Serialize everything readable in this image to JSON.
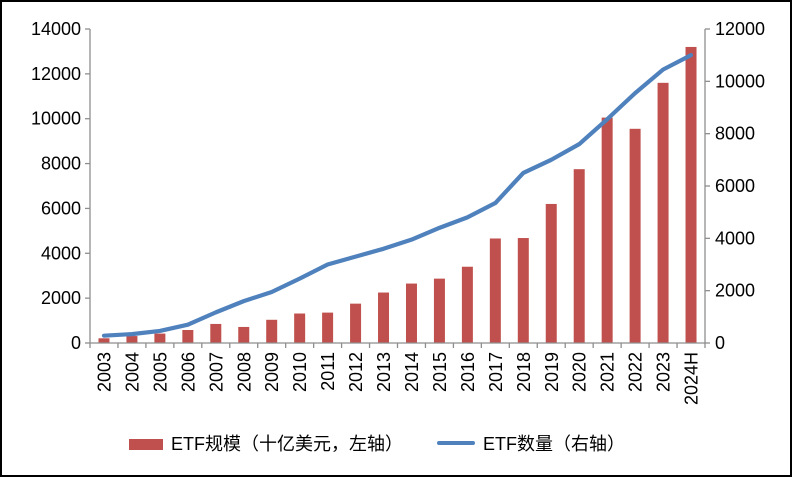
{
  "chart_data": {
    "type": "combo-bar-line",
    "title": "",
    "categories": [
      "2003",
      "2004",
      "2005",
      "2006",
      "2007",
      "2008",
      "2009",
      "2010",
      "2011",
      "2012",
      "2013",
      "2014",
      "2015",
      "2016",
      "2017",
      "2018",
      "2019",
      "2020",
      "2021",
      "2022",
      "2023",
      "2024H"
    ],
    "series": [
      {
        "name": "ETF规模（十亿美元，左轴）",
        "type": "bar",
        "axis": "left",
        "color": "#c0504d",
        "values": [
          210,
          310,
          420,
          580,
          850,
          715,
          1035,
          1315,
          1355,
          1755,
          2250,
          2650,
          2870,
          3400,
          4660,
          4680,
          6200,
          7750,
          10050,
          9550,
          11600,
          13200
        ]
      },
      {
        "name": "ETF数量（右轴）",
        "type": "line",
        "axis": "right",
        "color": "#4f81bd",
        "values": [
          280,
          340,
          460,
          700,
          1170,
          1600,
          1950,
          2460,
          3000,
          3300,
          3600,
          3950,
          4400,
          4800,
          5350,
          6500,
          7000,
          7600,
          8550,
          9550,
          10450,
          11000
        ]
      }
    ],
    "axes": {
      "left": {
        "min": 0,
        "max": 14000,
        "step": 2000,
        "tick_labels": [
          "0",
          "2000",
          "4000",
          "6000",
          "8000",
          "10000",
          "12000",
          "14000"
        ]
      },
      "right": {
        "min": 0,
        "max": 12000,
        "step": 2000,
        "tick_labels": [
          "0",
          "2000",
          "4000",
          "6000",
          "8000",
          "10000",
          "12000"
        ]
      },
      "x": {
        "tick_labels": [
          "2003",
          "2004",
          "2005",
          "2006",
          "2007",
          "2008",
          "2009",
          "2010",
          "2011",
          "2012",
          "2013",
          "2014",
          "2015",
          "2016",
          "2017",
          "2018",
          "2019",
          "2020",
          "2021",
          "2022",
          "2023",
          "2024H"
        ]
      }
    },
    "grid": false,
    "legend_position": "bottom"
  }
}
